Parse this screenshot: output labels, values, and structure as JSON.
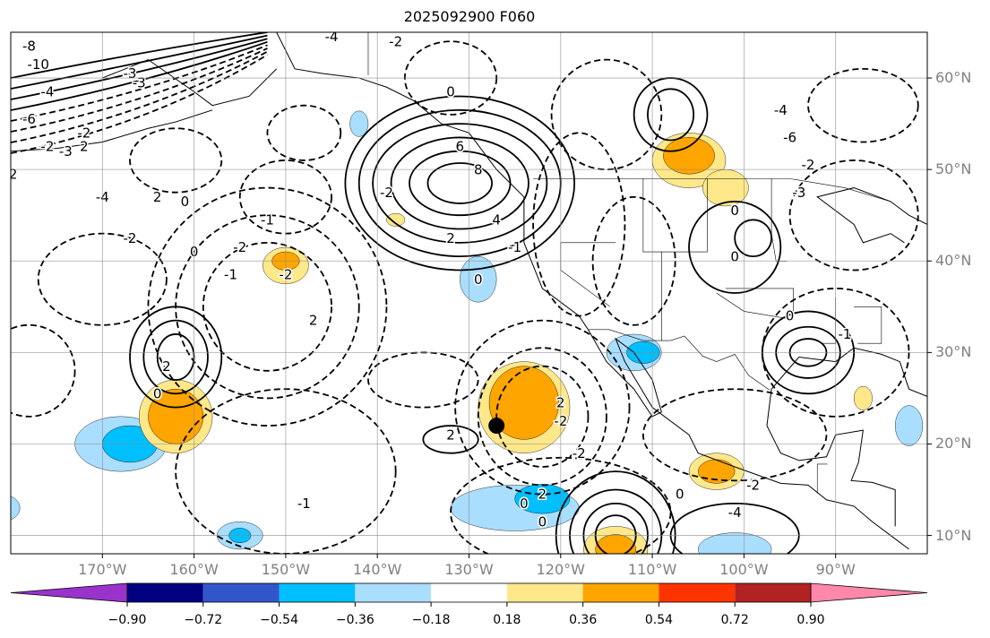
{
  "title": "2025092900 F060",
  "map": {
    "lon_range": [
      -180,
      -80
    ],
    "lat_range": [
      8,
      65
    ],
    "lat_labels": [
      "60°N",
      "50°N",
      "40°N",
      "30°N",
      "20°N",
      "10°N"
    ],
    "lon_labels": [
      "170°W",
      "160°W",
      "150°W",
      "140°W",
      "130°W",
      "120°W",
      "110°W",
      "100°W",
      "90°W"
    ],
    "marker": {
      "lon": -127,
      "lat": 22
    },
    "contour_labels": [
      "-4",
      "-2",
      "-3",
      "-3",
      "-2",
      "2",
      "-8",
      "-10",
      "-4",
      "-6",
      "-2",
      "-3",
      "-4",
      "-2",
      "0",
      "2",
      "-2",
      "-1",
      "0",
      "-2",
      "2",
      "6",
      "8",
      "4",
      "2",
      "-2",
      "-1",
      "-2",
      "2",
      "0",
      "0",
      "-1",
      "2",
      "-2",
      "2",
      "0",
      "-2",
      "0",
      "2",
      "-1",
      "-4",
      "-6",
      "-2",
      "-3",
      "0",
      "0",
      "0",
      "-1",
      "0",
      "-2",
      "-4",
      "0"
    ]
  },
  "colorbar": {
    "ticks": [
      "−0.90",
      "−0.72",
      "−0.54",
      "−0.36",
      "−0.18",
      "0.18",
      "0.36",
      "0.54",
      "0.72",
      "0.90"
    ],
    "colors": [
      "#9933cc",
      "#000080",
      "#3355cc",
      "#00bfff",
      "#aadeff",
      "#ffffff",
      "#ffe88a",
      "#ffa500",
      "#ff3300",
      "#b22222",
      "#ff88aa"
    ]
  }
}
